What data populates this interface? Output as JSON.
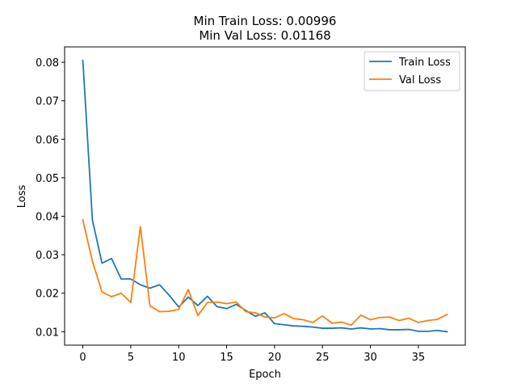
{
  "chart_data": {
    "type": "line",
    "title_lines": [
      "Min Train Loss: 0.00996",
      "Min Val Loss: 0.01168"
    ],
    "xlabel": "Epoch",
    "ylabel": "Loss",
    "xlim": [
      -1.9,
      39.9
    ],
    "ylim": [
      0.0065,
      0.084
    ],
    "xticks": [
      0,
      5,
      10,
      15,
      20,
      25,
      30,
      35
    ],
    "yticks": [
      0.01,
      0.02,
      0.03,
      0.04,
      0.05,
      0.06,
      0.07,
      0.08
    ],
    "ytick_labels": [
      "0.01",
      "0.02",
      "0.03",
      "0.04",
      "0.05",
      "0.06",
      "0.07",
      "0.08"
    ],
    "grid": false,
    "legend_position": "top-right",
    "x": [
      0,
      1,
      2,
      3,
      4,
      5,
      6,
      7,
      8,
      9,
      10,
      11,
      12,
      13,
      14,
      15,
      16,
      17,
      18,
      19,
      20,
      21,
      22,
      23,
      24,
      25,
      26,
      27,
      28,
      29,
      30,
      31,
      32,
      33,
      34,
      35,
      36,
      37,
      38
    ],
    "series": [
      {
        "name": "Train Loss",
        "color": "#1f77b4",
        "values": [
          0.0805,
          0.039,
          0.0278,
          0.029,
          0.0237,
          0.0237,
          0.0222,
          0.0213,
          0.0222,
          0.0195,
          0.0164,
          0.019,
          0.0168,
          0.0192,
          0.0165,
          0.016,
          0.0171,
          0.0155,
          0.014,
          0.0149,
          0.0121,
          0.0118,
          0.0115,
          0.0114,
          0.0112,
          0.0109,
          0.0109,
          0.011,
          0.0107,
          0.011,
          0.0107,
          0.0108,
          0.0105,
          0.0105,
          0.0106,
          0.0101,
          0.0101,
          0.0103,
          0.01
        ]
      },
      {
        "name": "Val Loss",
        "color": "#ff7f0e",
        "values": [
          0.039,
          0.0283,
          0.0203,
          0.0191,
          0.02,
          0.0176,
          0.0373,
          0.0167,
          0.0152,
          0.0153,
          0.0158,
          0.0209,
          0.0142,
          0.0176,
          0.0177,
          0.0173,
          0.0177,
          0.0152,
          0.0149,
          0.0138,
          0.0136,
          0.0147,
          0.0134,
          0.0131,
          0.0124,
          0.0141,
          0.0122,
          0.0125,
          0.0117,
          0.0143,
          0.0131,
          0.0137,
          0.0138,
          0.0129,
          0.0135,
          0.0124,
          0.0129,
          0.0132,
          0.0145
        ]
      }
    ]
  }
}
